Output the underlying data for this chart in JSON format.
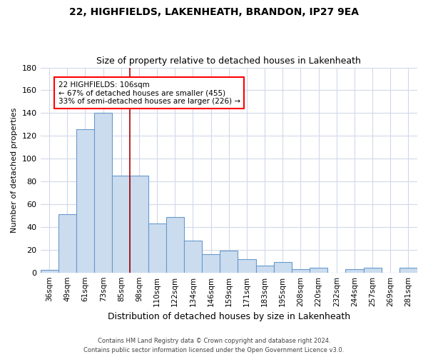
{
  "title1": "22, HIGHFIELDS, LAKENHEATH, BRANDON, IP27 9EA",
  "title2": "Size of property relative to detached houses in Lakenheath",
  "xlabel": "Distribution of detached houses by size in Lakenheath",
  "ylabel": "Number of detached properties",
  "bar_labels": [
    "36sqm",
    "49sqm",
    "61sqm",
    "73sqm",
    "85sqm",
    "98sqm",
    "110sqm",
    "122sqm",
    "134sqm",
    "146sqm",
    "159sqm",
    "171sqm",
    "183sqm",
    "195sqm",
    "208sqm",
    "220sqm",
    "232sqm",
    "244sqm",
    "257sqm",
    "269sqm",
    "281sqm"
  ],
  "bar_values": [
    2,
    51,
    126,
    140,
    85,
    85,
    43,
    49,
    28,
    16,
    19,
    12,
    6,
    9,
    3,
    4,
    0,
    3,
    4,
    0,
    4
  ],
  "bar_color": "#ccdcef",
  "bar_edge_color": "#6699cc",
  "ylim": [
    0,
    180
  ],
  "yticks": [
    0,
    20,
    40,
    60,
    80,
    100,
    120,
    140,
    160,
    180
  ],
  "annotation_line": "22 HIGHFIELDS: 106sqm",
  "annotation_line2": "← 67% of detached houses are smaller (455)",
  "annotation_line3": "33% of semi-detached houses are larger (226) →",
  "footer1": "Contains HM Land Registry data © Crown copyright and database right 2024.",
  "footer2": "Contains public sector information licensed under the Open Government Licence v3.0.",
  "background_color": "#ffffff",
  "grid_color": "#d0d8e8"
}
